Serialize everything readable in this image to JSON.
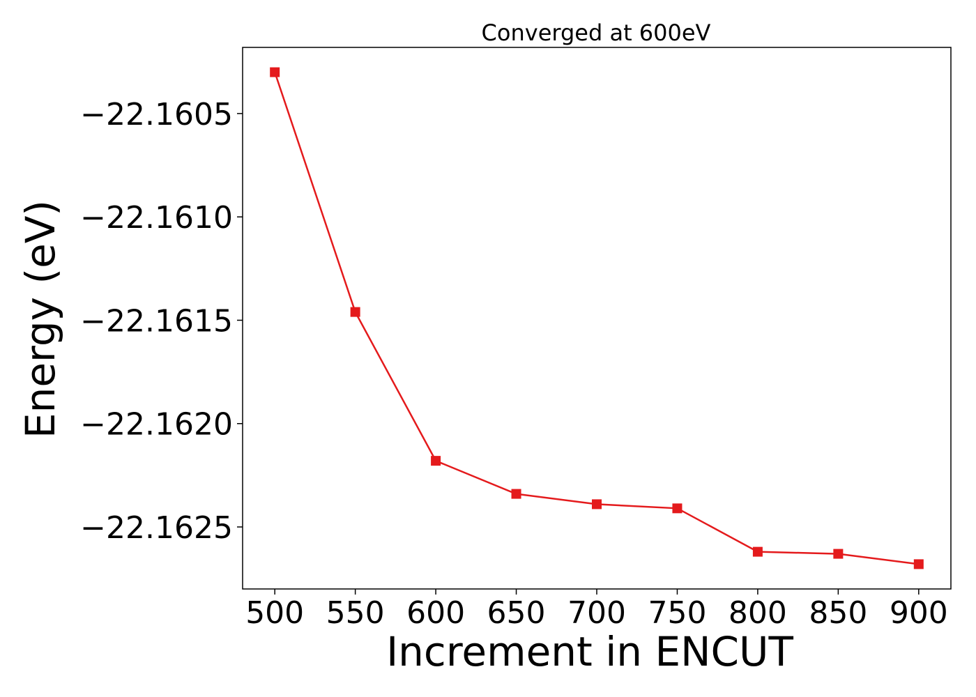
{
  "chart_data": {
    "type": "line",
    "title": "Converged at 600eV",
    "xlabel": "Increment in ENCUT",
    "ylabel": "Energy (eV)",
    "x": [
      500,
      550,
      600,
      650,
      700,
      750,
      800,
      850,
      900
    ],
    "series": [
      {
        "values": [
          -22.1603,
          -22.16146,
          -22.16218,
          -22.16234,
          -22.16239,
          -22.16241,
          -22.16262,
          -22.16263,
          -22.16268
        ],
        "color": "#e41a1c",
        "marker": "square"
      }
    ],
    "xlim": [
      480,
      920
    ],
    "ylim": [
      -22.1628,
      -22.16018
    ],
    "xticks": [
      500,
      550,
      600,
      650,
      700,
      750,
      800,
      850,
      900
    ],
    "xtick_labels": [
      "500",
      "550",
      "600",
      "650",
      "700",
      "750",
      "800",
      "850",
      "900"
    ],
    "yticks": [
      -22.1605,
      -22.161,
      -22.1615,
      -22.162,
      -22.1625
    ],
    "ytick_labels": [
      "−22.1605",
      "−22.1610",
      "−22.1615",
      "−22.1620",
      "−22.1625"
    ],
    "grid": false,
    "legend": "none"
  }
}
